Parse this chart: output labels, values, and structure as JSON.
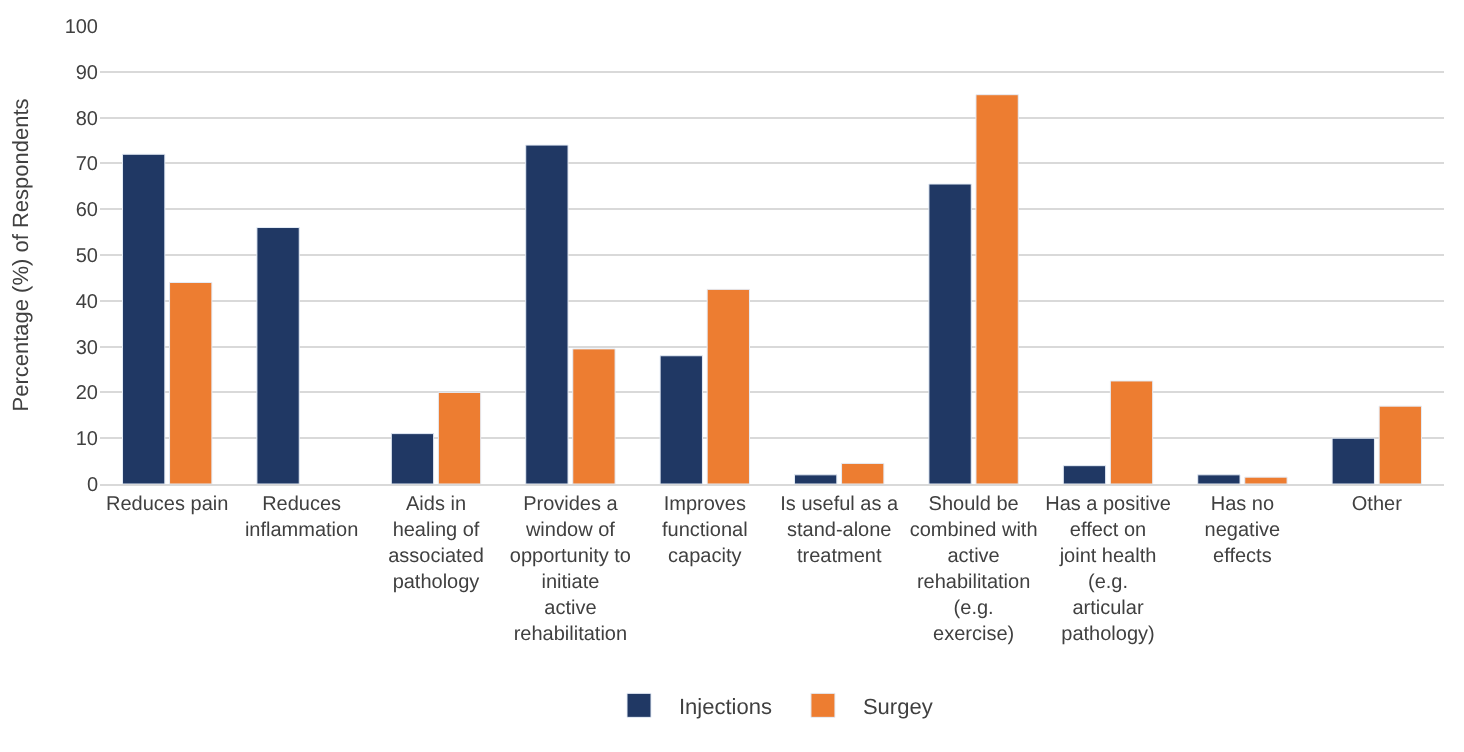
{
  "chart_data": {
    "type": "bar",
    "ylabel": "Percentage (%) of Respondents",
    "categories": [
      "Reduces pain",
      "Reduces inflammation",
      "Aids in healing of associated pathology",
      "Provides a window of opportunity to initiate active rehabilitation",
      "Improves functional capacity",
      "Is useful as a stand-alone treatment",
      "Should be combined with active rehabilitation (e.g. exercise)",
      "Has a positive effect on joint health (e.g. articular pathology)",
      "Has no negative effects",
      "Other"
    ],
    "series": [
      {
        "name": "Injections",
        "color": "#203864",
        "values": [
          72,
          56,
          11,
          74,
          28,
          2,
          65.5,
          4,
          2,
          10
        ]
      },
      {
        "name": "Surgey",
        "color": "#ed7d31",
        "values": [
          44,
          null,
          20,
          29.5,
          42.5,
          4.5,
          85,
          22.5,
          1.5,
          17
        ]
      }
    ],
    "ylim": [
      0,
      100
    ],
    "yticks": [
      0,
      10,
      20,
      30,
      40,
      50,
      60,
      70,
      80,
      90,
      100
    ],
    "grid": "y",
    "legend": "bottom"
  }
}
